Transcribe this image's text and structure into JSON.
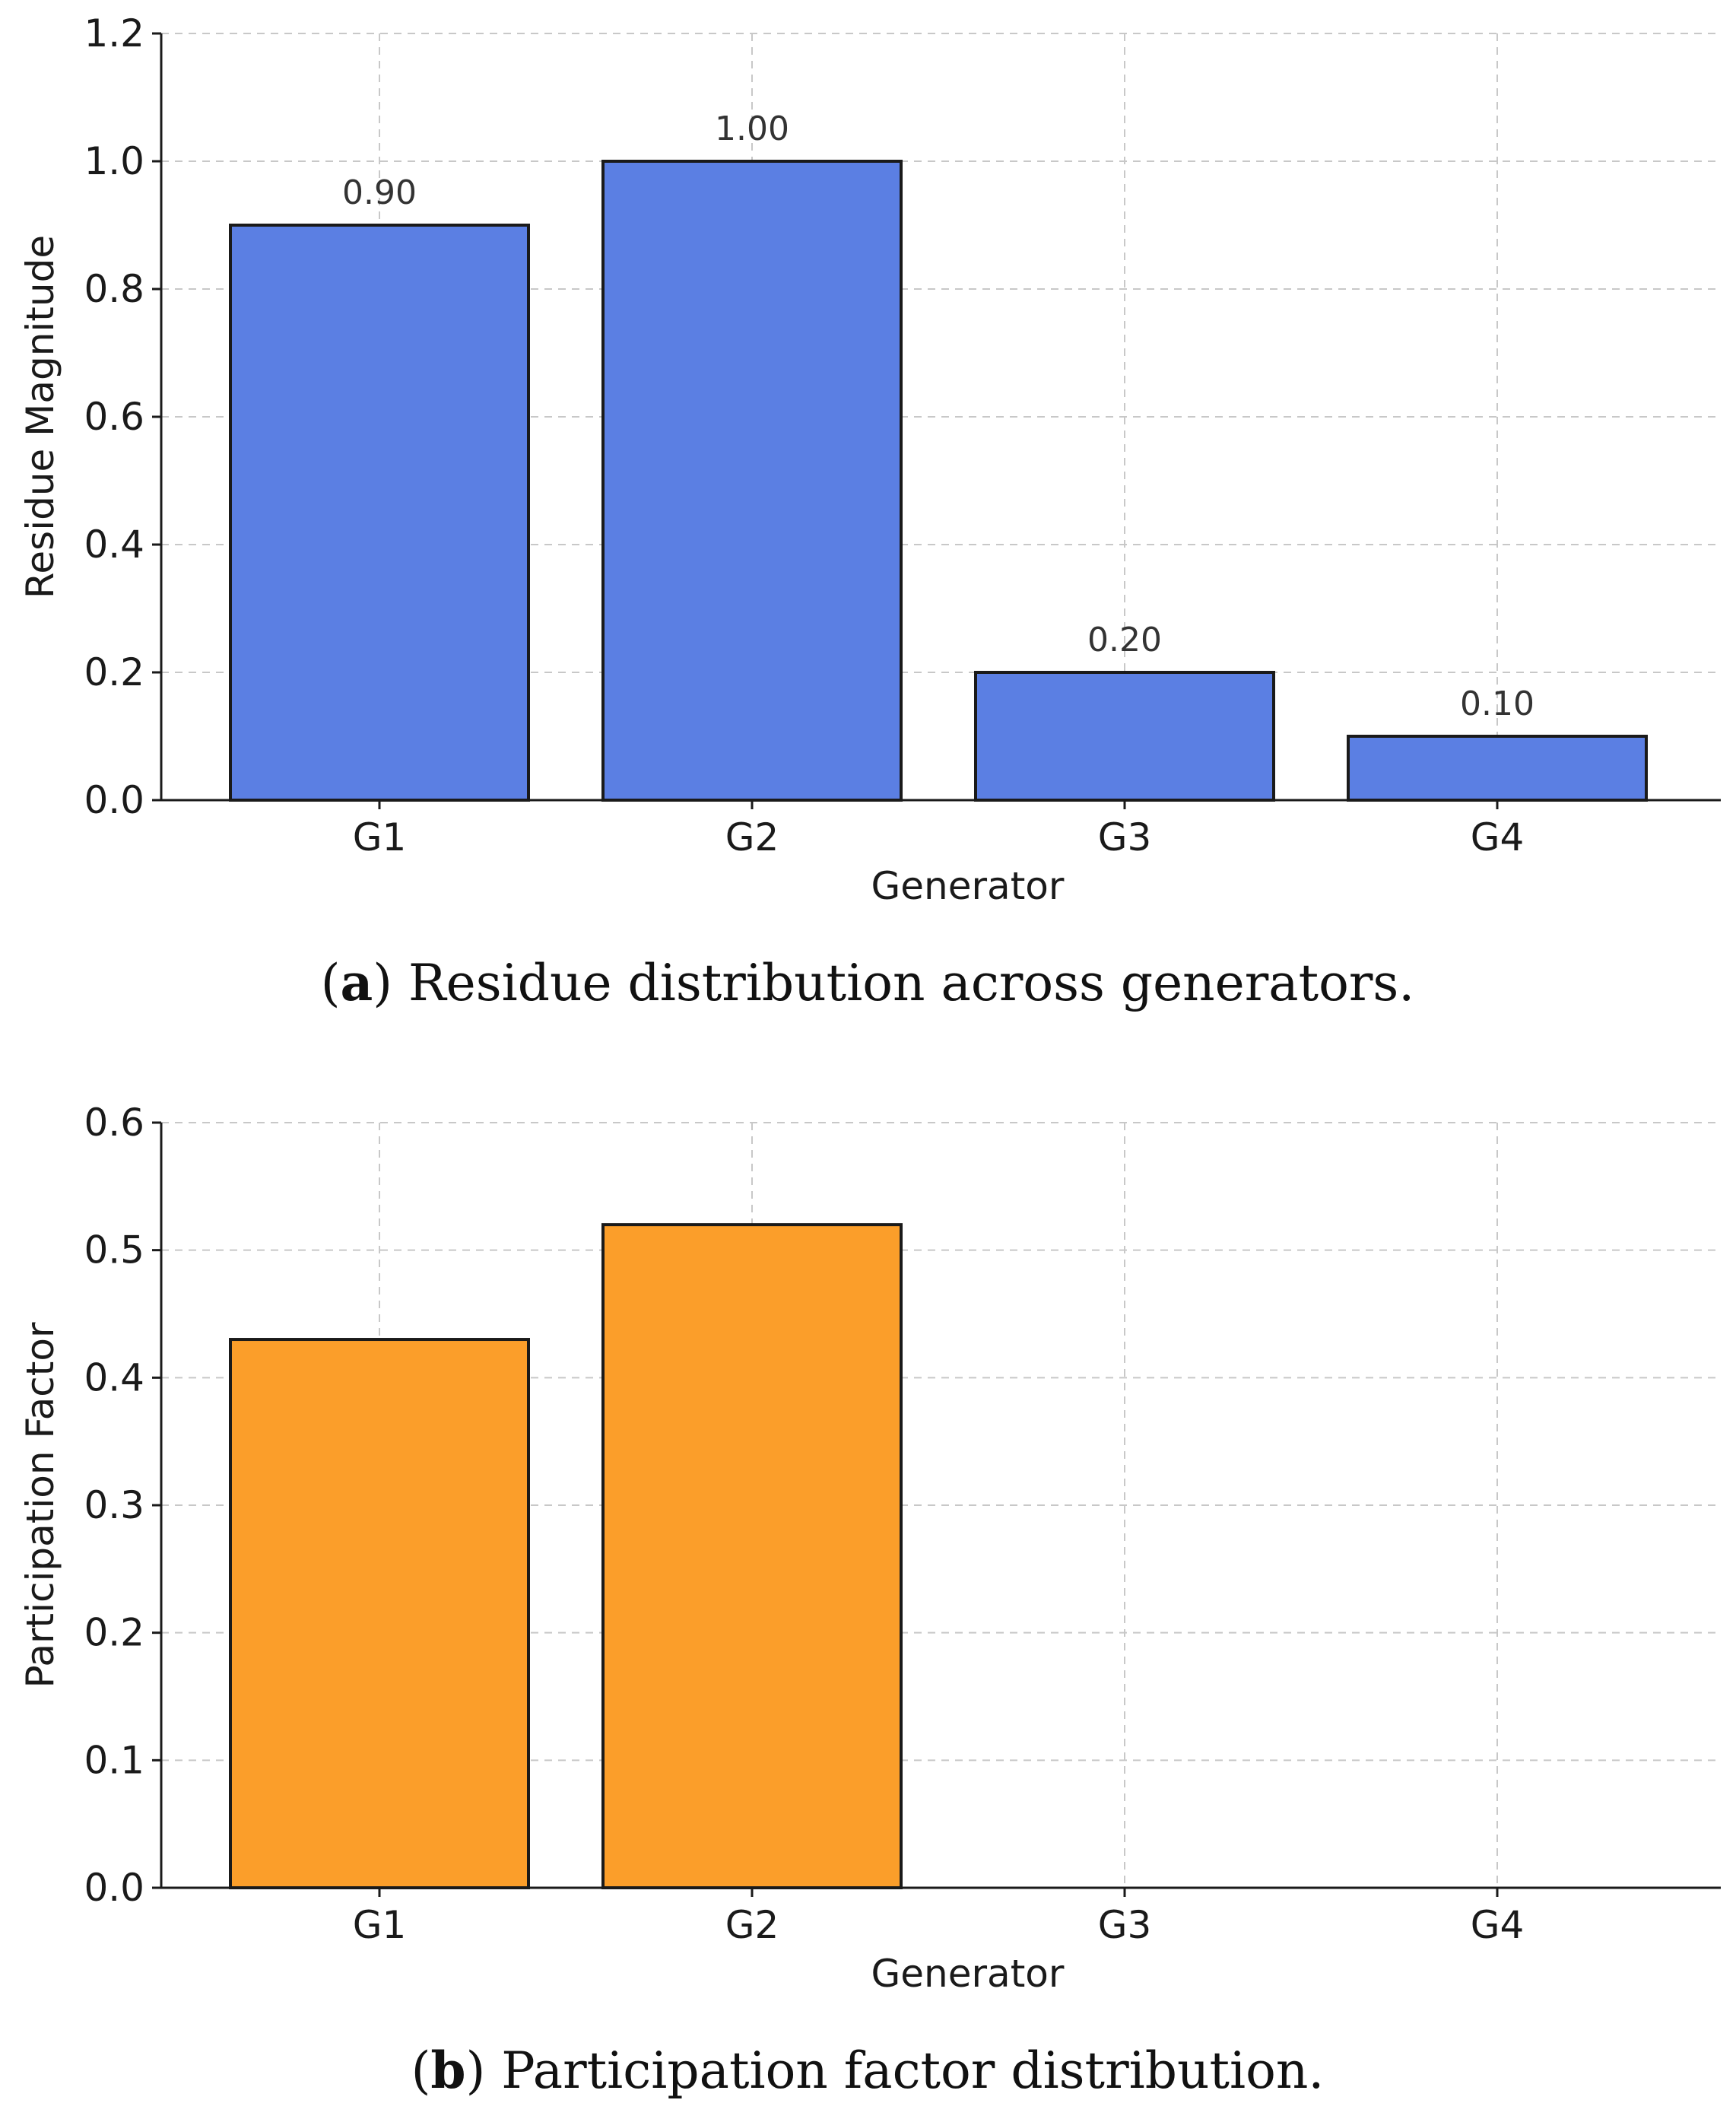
{
  "colors": {
    "residue_bar": "#5b7fe3",
    "participation_bar": "#fb9e2a"
  },
  "chart_data": [
    {
      "type": "bar",
      "panel": "a",
      "categories": [
        "G1",
        "G2",
        "G3",
        "G4"
      ],
      "values": [
        0.9,
        1.0,
        0.2,
        0.1
      ],
      "value_labels": [
        "0.90",
        "1.00",
        "0.20",
        "0.10"
      ],
      "xlabel": "Generator",
      "ylabel": "Residue Magnitude",
      "ylim": [
        0,
        1.2
      ],
      "yticks": [
        0.0,
        0.2,
        0.4,
        0.6,
        0.8,
        1.0,
        1.2
      ],
      "ytick_labels": [
        "0.0",
        "0.2",
        "0.4",
        "0.6",
        "0.8",
        "1.0",
        "1.2"
      ],
      "grid": true,
      "caption_letter": "a",
      "caption_text": "Residue distribution across generators."
    },
    {
      "type": "bar",
      "panel": "b",
      "categories": [
        "G1",
        "G2",
        "G3",
        "G4"
      ],
      "values": [
        0.43,
        0.52,
        0.0,
        0.0
      ],
      "xlabel": "Generator",
      "ylabel": "Participation Factor",
      "ylim": [
        0,
        0.6
      ],
      "yticks": [
        0.0,
        0.1,
        0.2,
        0.3,
        0.4,
        0.5,
        0.6
      ],
      "ytick_labels": [
        "0.0",
        "0.1",
        "0.2",
        "0.3",
        "0.4",
        "0.5",
        "0.6"
      ],
      "grid": true,
      "caption_letter": "b",
      "caption_text": "Participation factor distribution."
    }
  ]
}
